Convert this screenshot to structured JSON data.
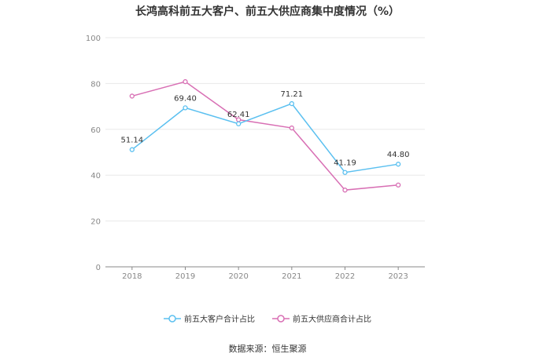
{
  "title": "长鸿高科前五大客户、前五大供应商集中度情况（%）",
  "source": "数据来源：恒生聚源",
  "colors": {
    "customers": "#5bc0f0",
    "suppliers": "#d86fb4",
    "grid": "#e8e8e8",
    "axis": "#888888",
    "tick_text": "#888888"
  },
  "chart_data": {
    "type": "line",
    "x": [
      "2018",
      "2019",
      "2020",
      "2021",
      "2022",
      "2023"
    ],
    "ylim": [
      0,
      100
    ],
    "yticks": [
      0,
      20,
      40,
      60,
      80,
      100
    ],
    "grid": true,
    "legend_position": "bottom",
    "series": [
      {
        "name": "前五大客户合计占比",
        "values": [
          51.14,
          69.4,
          62.41,
          71.21,
          41.19,
          44.8
        ],
        "labels": [
          "51.14",
          "69.40",
          "62.41",
          "71.21",
          "41.19",
          "44.80"
        ],
        "color": "#5bc0f0"
      },
      {
        "name": "前五大供应商合计占比",
        "values": [
          74.5,
          80.8,
          64.2,
          60.6,
          33.5,
          35.7
        ],
        "color": "#d86fb4"
      }
    ]
  }
}
